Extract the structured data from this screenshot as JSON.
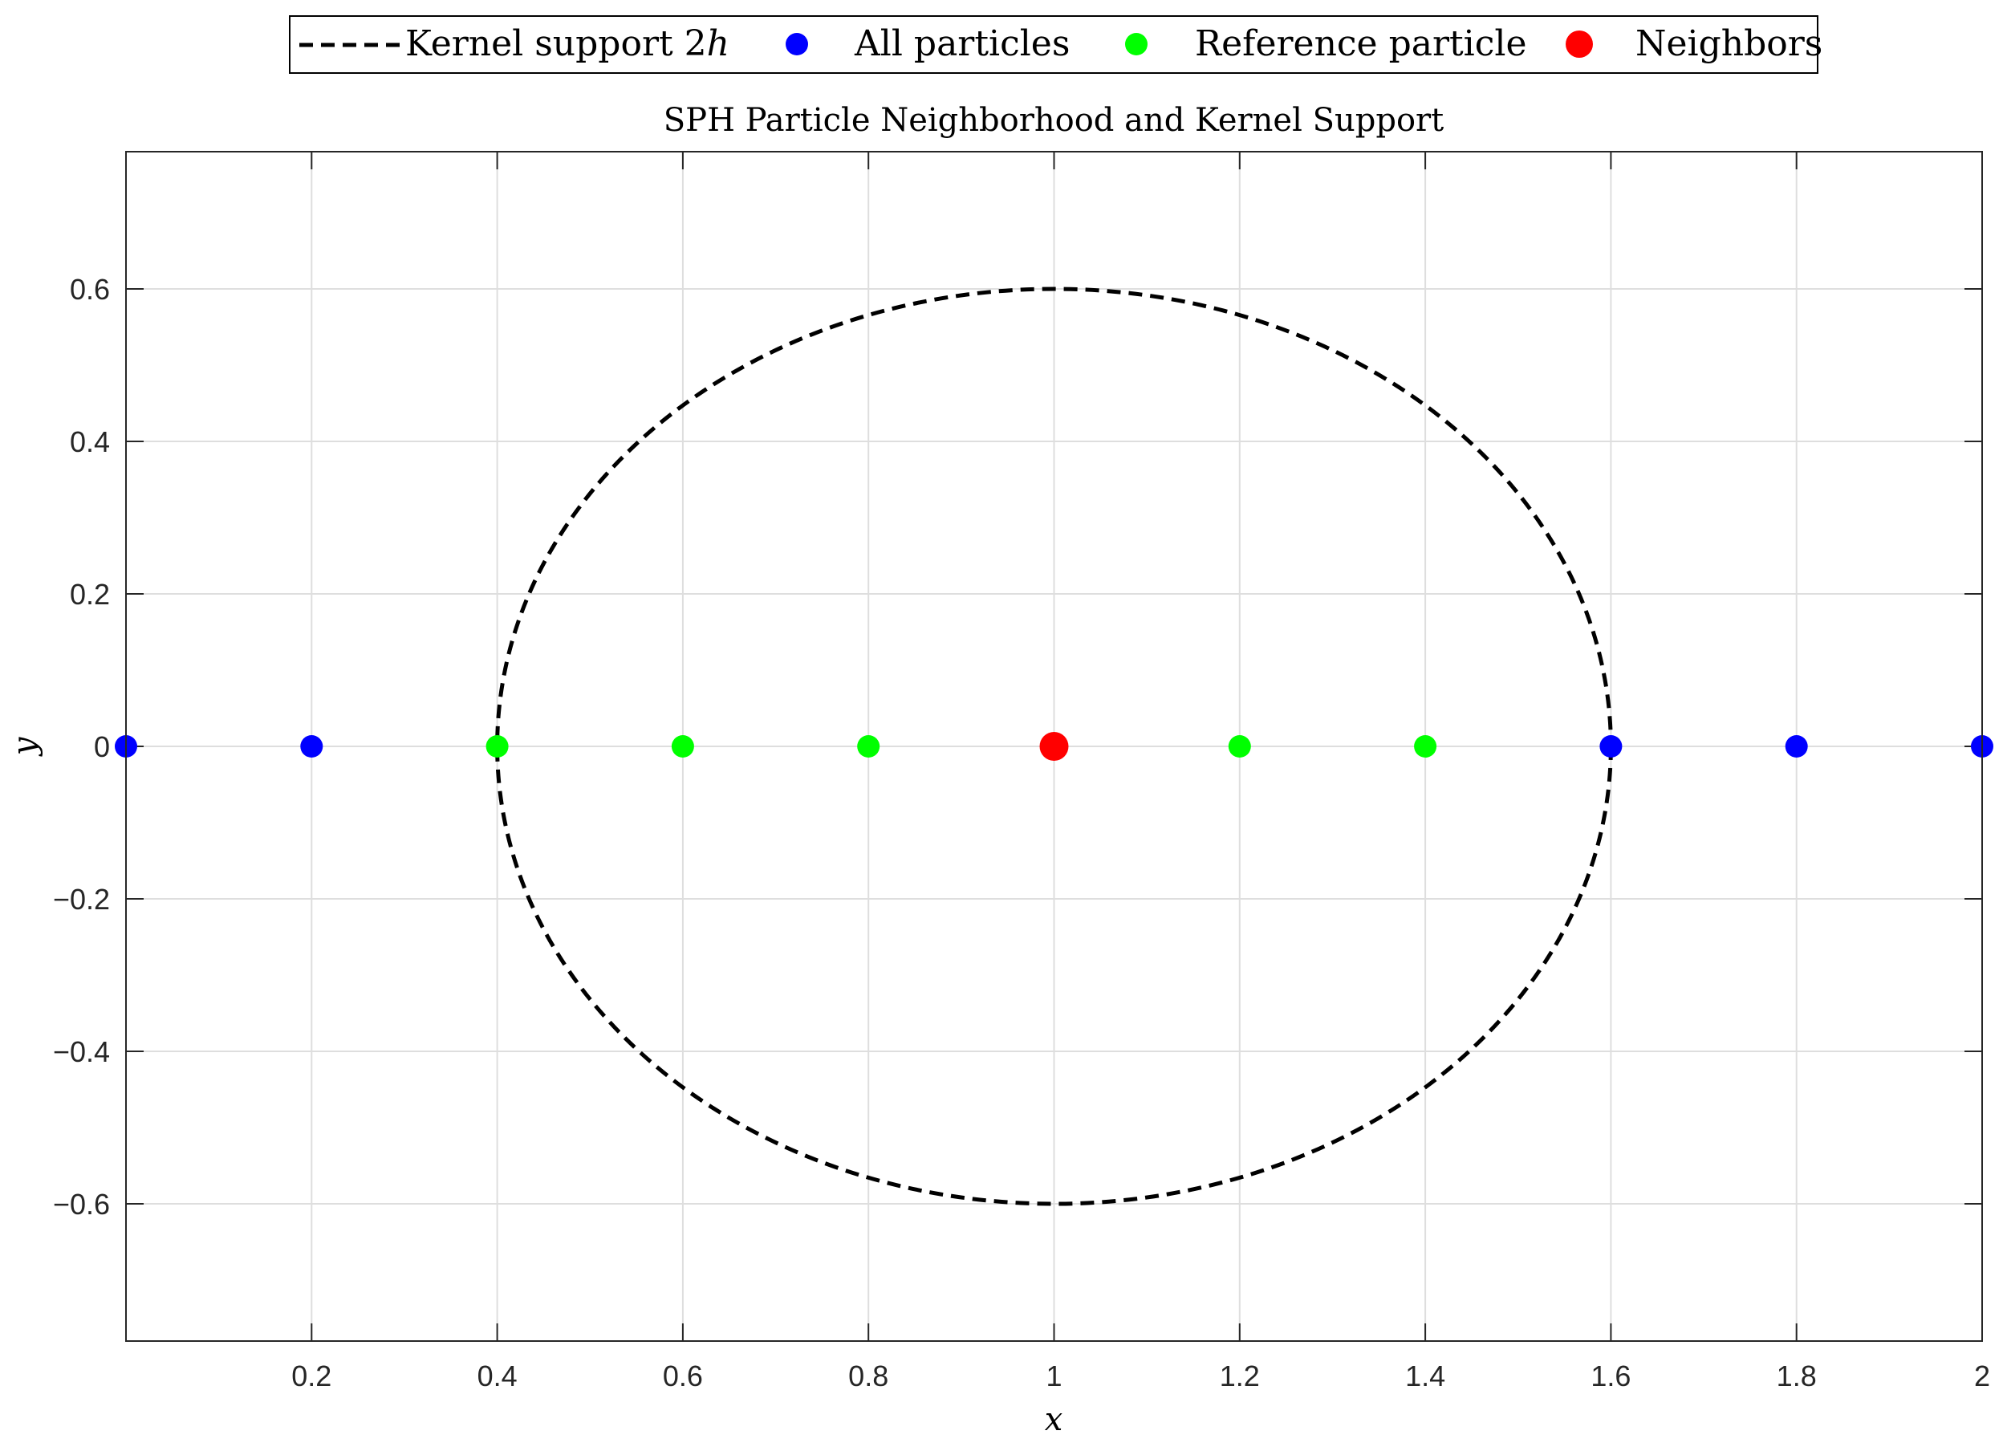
{
  "chart_data": {
    "type": "scatter",
    "title": "SPH Particle Neighborhood and Kernel Support",
    "xlabel": "x",
    "ylabel": "y",
    "xlim": [
      0,
      2
    ],
    "ylim": [
      -0.78,
      0.78
    ],
    "x_ticks": [
      0.2,
      0.4,
      0.6,
      0.8,
      1,
      1.2,
      1.4,
      1.6,
      1.8,
      2
    ],
    "x_tick_labels": [
      "0.2",
      "0.4",
      "0.6",
      "0.8",
      "1",
      "1.2",
      "1.4",
      "1.6",
      "1.8",
      "2"
    ],
    "y_ticks": [
      0.6,
      0.4,
      0.2,
      0,
      -0.2,
      -0.4,
      -0.6
    ],
    "y_tick_labels": [
      "0.6",
      "0.4",
      "0.2",
      "0",
      "−0.2",
      "−0.4",
      "−0.6"
    ],
    "grid": true,
    "legend_position": "top-center",
    "series": [
      {
        "name": "Kernel support 2h",
        "kind": "circle-dashed",
        "color": "#000000",
        "center": [
          1,
          0
        ],
        "radius": 0.6
      },
      {
        "name": "All particles",
        "kind": "points",
        "color": "#0000ff",
        "x": [
          0,
          0.2,
          1.6,
          1.8,
          2
        ],
        "y": [
          0,
          0,
          0,
          0,
          0
        ]
      },
      {
        "name": "Reference particle",
        "kind": "points",
        "color": "#00ff00",
        "x": [
          0.4,
          0.6,
          0.8,
          1.2,
          1.4
        ],
        "y": [
          0,
          0,
          0,
          0,
          0
        ]
      },
      {
        "name": "Neighbors",
        "kind": "points",
        "color": "#ff0000",
        "x": [
          1
        ],
        "y": [
          0
        ]
      }
    ]
  },
  "legend": {
    "kernel_label_main": "Kernel support ",
    "kernel_label_math": "2h",
    "kernel_label_num": "2",
    "kernel_label_var": "h",
    "all_label": "All particles",
    "reference_label": "Reference particle",
    "neighbors_label": "Neighbors"
  }
}
